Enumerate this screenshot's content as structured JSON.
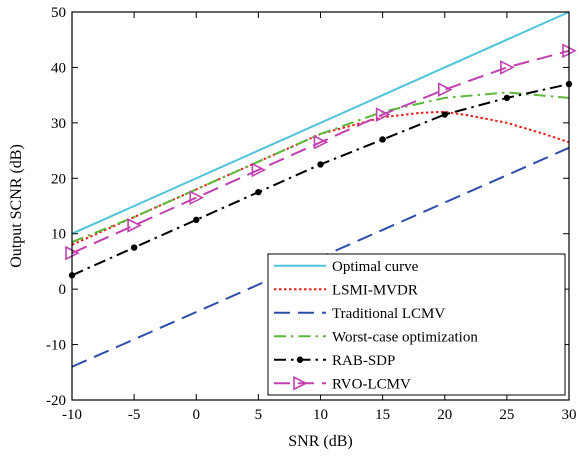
{
  "chart_data": {
    "type": "line",
    "title": "",
    "xlabel": "SNR (dB)",
    "ylabel": "Output SCNR (dB)",
    "xlim": [
      -10,
      30
    ],
    "ylim": [
      -20,
      50
    ],
    "xticks": [
      -10,
      -5,
      0,
      5,
      10,
      15,
      20,
      25,
      30
    ],
    "yticks": [
      -20,
      -10,
      0,
      10,
      20,
      30,
      40,
      50
    ],
    "xtick_labels": [
      "-10",
      "-5",
      "0",
      "5",
      "10",
      "15",
      "20",
      "25",
      "30"
    ],
    "ytick_labels": [
      "-20",
      "-10",
      "0",
      "10",
      "20",
      "30",
      "40",
      "50"
    ],
    "grid": false,
    "legend_position": "bottom-right",
    "series": [
      {
        "name": "Optimal curve",
        "color": "#4FC3D9",
        "style": "solid",
        "marker": "none",
        "x": [
          -10,
          30
        ],
        "y": [
          10,
          50
        ]
      },
      {
        "name": "LSMI-MVDR",
        "color": "#E8201A",
        "style": "dotted",
        "marker": "none",
        "x": [
          -10,
          -5,
          0,
          5,
          10,
          15,
          18,
          20,
          22,
          25,
          28,
          30
        ],
        "y": [
          8,
          13,
          18,
          23,
          28,
          31,
          31.8,
          32,
          31.3,
          30,
          28,
          26.5
        ]
      },
      {
        "name": "Traditional LCMV",
        "color": "#2B4FA8",
        "style": "dashed",
        "marker": "none",
        "x": [
          -10,
          30
        ],
        "y": [
          -14,
          25.5
        ]
      },
      {
        "name": "Worst-case optimization",
        "color": "#5CB83A",
        "style": "dashdot",
        "marker": "none",
        "x": [
          -10,
          -5,
          0,
          5,
          10,
          15,
          20,
          25,
          30
        ],
        "y": [
          8.5,
          13,
          18,
          23,
          28,
          32,
          34.5,
          35.5,
          34.5
        ]
      },
      {
        "name": "RAB-SDP",
        "color": "#000000",
        "style": "dashdot",
        "marker": "dot",
        "x": [
          -10,
          -5,
          0,
          5,
          10,
          15,
          20,
          25,
          30
        ],
        "y": [
          2.5,
          7.5,
          12.5,
          17.5,
          22.5,
          27,
          31.5,
          34.5,
          37
        ]
      },
      {
        "name": "RVO-LCMV",
        "color": "#C040B0",
        "style": "dashed",
        "marker": "triangle-right",
        "x": [
          -10,
          -5,
          0,
          5,
          10,
          15,
          20,
          25,
          30
        ],
        "y": [
          6.5,
          11.5,
          16.5,
          21.5,
          26.5,
          31.5,
          36,
          40,
          43
        ]
      }
    ]
  }
}
